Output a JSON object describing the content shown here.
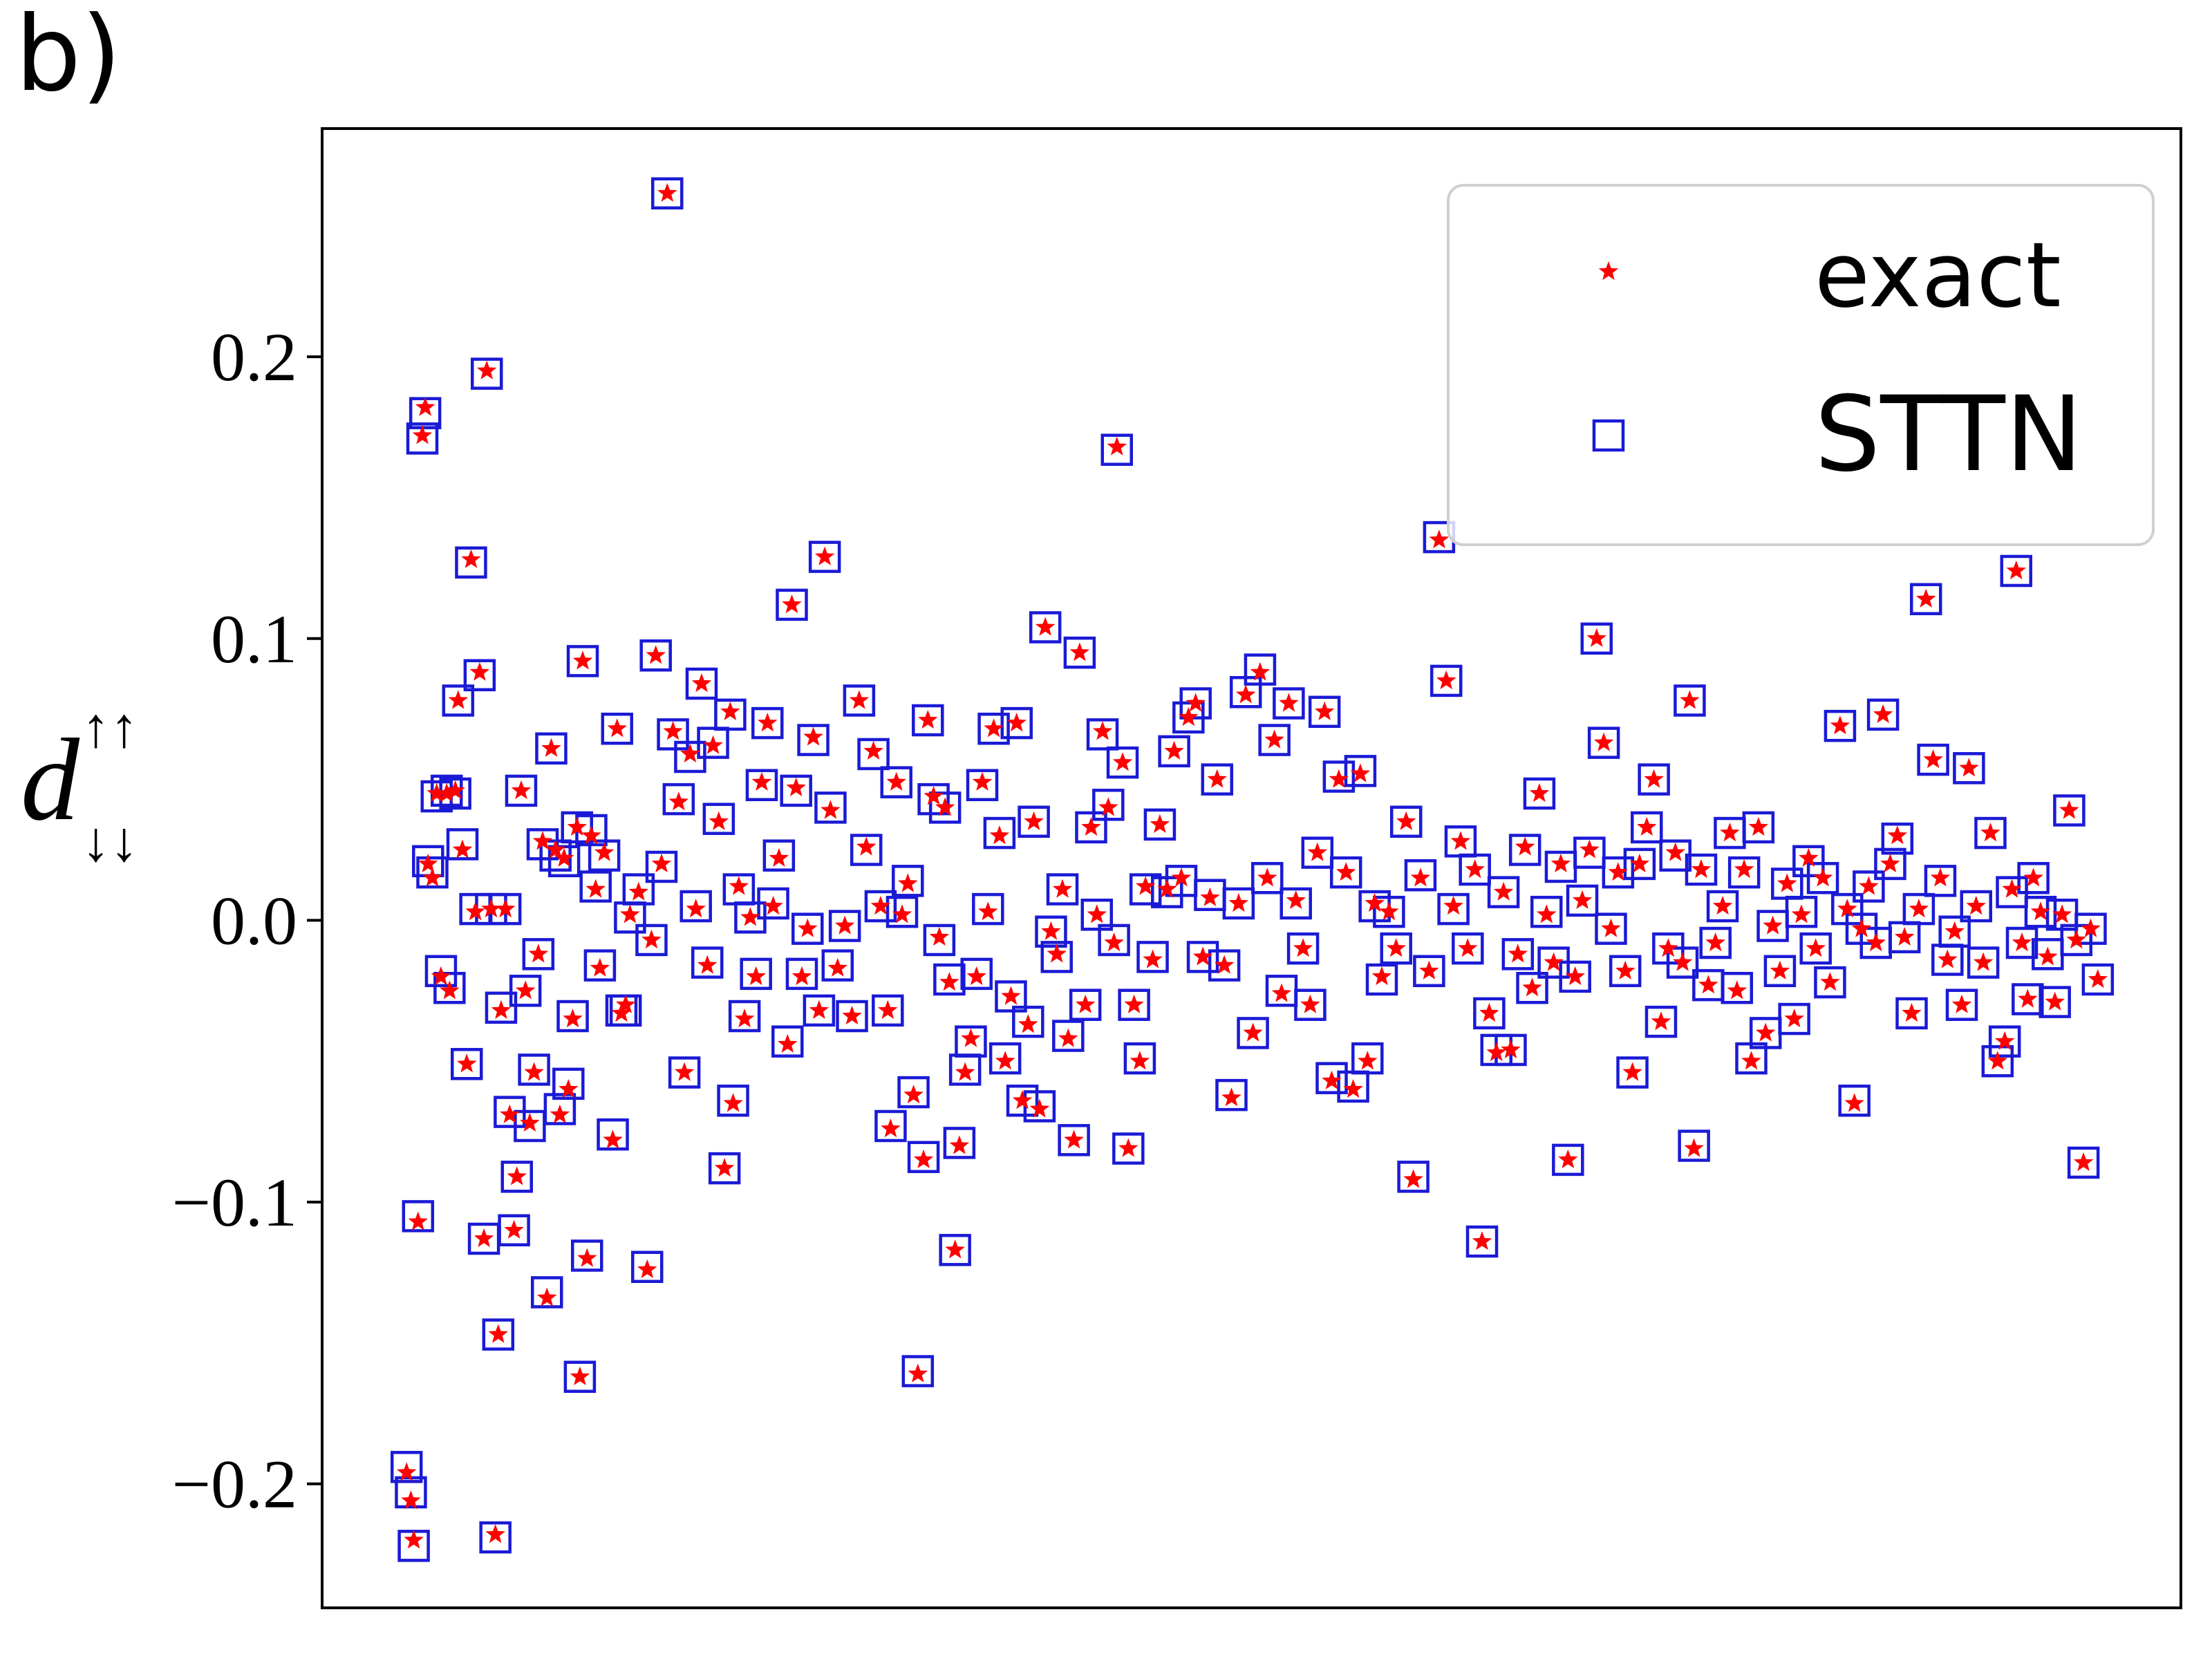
{
  "panel_label": "b)",
  "chart_data": {
    "type": "scatter",
    "ylabel": {
      "base": "d",
      "sup": "↑↑",
      "sub": "↓↓"
    },
    "xlim": [
      0,
      1298
    ],
    "ylim": [
      -0.244,
      0.281
    ],
    "yticks": [
      {
        "value": -0.2,
        "label": "−0.2"
      },
      {
        "value": -0.1,
        "label": "−0.1"
      },
      {
        "value": 0,
        "label": "0.0"
      },
      0.1,
      0.2
    ],
    "legend": "upper right",
    "x": [
      59,
      62,
      64,
      67,
      70,
      72,
      74,
      77,
      80,
      83,
      87,
      89,
      93,
      95,
      98,
      101,
      104,
      107,
      110,
      113,
      115,
      118,
      121,
      123,
      125,
      128,
      131,
      134,
      136,
      139,
      142,
      145,
      148,
      151,
      154,
      157,
      160,
      163,
      166,
      169,
      172,
      175,
      178,
      180,
      182,
      185,
      188,
      191,
      194,
      197,
      203,
      206,
      209,
      212,
      215,
      221,
      227,
      230,
      233,
      237,
      241,
      245,
      249,
      253,
      257,
      261,
      265,
      269,
      273,
      277,
      281,
      285,
      287,
      291,
      295,
      299,
      303,
      307,
      311,
      315,
      319,
      325,
      328,
      331,
      335,
      339,
      343,
      347,
      351,
      355,
      360,
      365,
      370,
      375,
      380,
      385,
      390,
      395,
      397,
      401,
      405,
      409,
      413,
      416,
      420,
      423,
      427,
      431,
      435,
      438,
      442,
      445,
      449,
      453,
      457,
      461,
      465,
      469,
      473,
      477,
      481,
      485,
      489,
      493,
      497,
      501,
      505,
      509,
      513,
      517,
      521,
      525,
      529,
      533,
      537,
      541,
      545,
      549,
      553,
      555,
      559,
      563,
      567,
      571,
      575,
      580,
      585,
      590,
      595,
      600,
      605,
      610,
      615,
      620,
      625,
      630,
      635,
      640,
      645,
      650,
      655,
      660,
      665,
      670,
      675,
      680,
      685,
      690,
      695,
      700,
      705,
      710,
      715,
      720,
      725,
      730,
      735,
      740,
      745,
      750,
      757,
      762,
      767,
      773,
      780,
      785,
      790,
      795,
      800,
      805,
      810,
      815,
      820,
      825,
      830,
      835,
      840,
      845,
      850,
      855,
      860,
      865,
      870,
      875,
      880,
      885,
      890,
      895,
      900,
      905,
      910,
      915,
      920,
      925,
      930,
      935,
      940,
      945,
      950,
      955,
      958,
      963,
      968,
      973,
      978,
      983,
      988,
      993,
      998,
      1003,
      1008,
      1013,
      1018,
      1023,
      1028,
      1033,
      1038,
      1043,
      1048,
      1053,
      1060,
      1065,
      1070,
      1075,
      1080,
      1085,
      1090,
      1095,
      1100,
      1105,
      1110,
      1115,
      1120,
      1125,
      1130,
      1135,
      1140,
      1145,
      1150,
      1155,
      1160,
      1165,
      1170,
      1175,
      1180,
      1183,
      1187,
      1191,
      1195,
      1200,
      1205,
      1210,
      1215,
      1220,
      1225,
      1230,
      1235,
      1240
    ],
    "series": [
      {
        "name": "exact",
        "color": "#ff0000",
        "marker": "*",
        "values": [
          -0.196,
          -0.206,
          -0.22,
          -0.107,
          0.172,
          0.182,
          0.02,
          0.015,
          0.045,
          -0.02,
          0.045,
          -0.025,
          0.046,
          0.078,
          0.025,
          -0.051,
          0.128,
          0.003,
          0.088,
          -0.113,
          0.195,
          0.004,
          -0.218,
          -0.147,
          -0.032,
          0.004,
          -0.069,
          -0.11,
          -0.091,
          0.046,
          -0.025,
          -0.072,
          -0.054,
          -0.012,
          0.028,
          -0.134,
          0.061,
          0.025,
          -0.069,
          0.022,
          -0.06,
          -0.035,
          0.033,
          -0.162,
          0.092,
          -0.12,
          0.03,
          0.011,
          -0.017,
          0.024,
          -0.078,
          0.068,
          -0.033,
          -0.03,
          0.002,
          0.01,
          -0.124,
          -0.007,
          0.094,
          0.02,
          0.258,
          0.067,
          0.042,
          -0.054,
          0.059,
          0.004,
          0.084,
          -0.016,
          0.062,
          0.035,
          -0.088,
          0.074,
          -0.065,
          0.012,
          -0.035,
          0.001,
          -0.02,
          0.049,
          0.07,
          0.005,
          0.022,
          -0.044,
          0.112,
          0.047,
          -0.02,
          -0.003,
          0.065,
          -0.032,
          0.129,
          0.039,
          -0.017,
          -0.002,
          -0.034,
          0.078,
          0.026,
          0.06,
          0.005,
          -0.032,
          -0.074,
          0.049,
          0.002,
          0.013,
          -0.062,
          -0.161,
          -0.085,
          0.071,
          0.044,
          -0.006,
          0.04,
          -0.022,
          -0.117,
          -0.08,
          -0.054,
          -0.042,
          -0.02,
          0.049,
          0.003,
          0.068,
          0.03,
          -0.05,
          -0.027,
          0.07,
          -0.064,
          -0.037,
          0.035,
          -0.067,
          0.104,
          -0.004,
          -0.012,
          0.011,
          -0.042,
          -0.078,
          0.095,
          -0.03,
          0.033,
          0.002,
          0.067,
          0.04,
          -0.008,
          0.168,
          0.056,
          -0.081,
          -0.03,
          -0.05,
          0.012,
          -0.014,
          0.034,
          0.011,
          0.06,
          0.015,
          0.072,
          0.077,
          -0.013,
          0.008,
          0.05,
          -0.016,
          -0.063,
          0.006,
          0.08,
          -0.04,
          0.088,
          0.015,
          0.064,
          -0.026,
          0.077,
          0.007,
          -0.01,
          -0.03,
          0.024,
          0.074,
          -0.057,
          0.05,
          0.017,
          -0.06,
          0.052,
          -0.05,
          0.006,
          -0.02,
          0.003,
          -0.01,
          0.035,
          -0.092,
          0.015,
          -0.018,
          0.135,
          0.085,
          0.005,
          0.028,
          -0.01,
          0.018,
          -0.114,
          -0.033,
          -0.047,
          0.01,
          -0.046,
          -0.012,
          0.026,
          -0.024,
          0.045,
          0.002,
          -0.015,
          0.02,
          -0.085,
          -0.02,
          0.007,
          0.025,
          0.1,
          0.063,
          -0.003,
          0.017,
          -0.018,
          -0.054,
          0.02,
          0.033,
          0.05,
          -0.036,
          -0.01,
          0.024,
          -0.015,
          0.078,
          -0.081,
          0.018,
          -0.023,
          -0.008,
          0.005,
          0.031,
          -0.025,
          0.018,
          -0.05,
          0.033,
          -0.04,
          -0.002,
          -0.018,
          0.013,
          -0.035,
          0.002,
          0.022,
          -0.01,
          0.015,
          -0.022,
          0.069,
          0.004,
          -0.065,
          -0.003,
          0.012,
          -0.008,
          0.073,
          0.02,
          0.03,
          -0.006,
          -0.033,
          0.004,
          0.114,
          0.057,
          0.015,
          -0.014,
          -0.004,
          -0.03,
          0.054,
          0.005,
          -0.015,
          0.031,
          -0.05,
          -0.043,
          0.011,
          0.124,
          -0.008,
          -0.028,
          0.015,
          0.003,
          -0.013,
          -0.029,
          0.002,
          0.039,
          -0.007,
          -0.086,
          -0.003,
          -0.021
        ]
      },
      {
        "name": "STTN",
        "color": "#1a1ad6",
        "marker": "s",
        "values": [
          -0.194,
          -0.203,
          -0.222,
          -0.105,
          0.171,
          0.18,
          0.021,
          0.017,
          0.044,
          -0.018,
          0.046,
          -0.024,
          0.045,
          0.078,
          0.027,
          -0.051,
          0.127,
          0.004,
          0.087,
          -0.113,
          0.194,
          0.004,
          -0.219,
          -0.147,
          -0.031,
          0.004,
          -0.068,
          -0.11,
          -0.091,
          0.046,
          -0.025,
          -0.073,
          -0.053,
          -0.012,
          0.027,
          -0.132,
          0.061,
          0.023,
          -0.067,
          0.021,
          -0.058,
          -0.034,
          0.033,
          -0.162,
          0.092,
          -0.119,
          0.032,
          0.012,
          -0.016,
          0.023,
          -0.076,
          0.068,
          -0.032,
          -0.032,
          0.001,
          0.011,
          -0.123,
          -0.007,
          0.094,
          0.019,
          0.258,
          0.066,
          0.043,
          -0.054,
          0.058,
          0.005,
          0.084,
          -0.015,
          0.063,
          0.036,
          -0.088,
          0.073,
          -0.064,
          0.011,
          -0.034,
          0.001,
          -0.019,
          0.048,
          0.07,
          0.006,
          0.023,
          -0.043,
          0.112,
          0.046,
          -0.019,
          -0.003,
          0.064,
          -0.032,
          0.129,
          0.04,
          -0.016,
          -0.002,
          -0.034,
          0.078,
          0.025,
          0.059,
          0.005,
          -0.032,
          -0.073,
          0.049,
          0.003,
          0.014,
          -0.061,
          -0.16,
          -0.084,
          0.071,
          0.043,
          -0.007,
          0.04,
          -0.021,
          -0.117,
          -0.079,
          -0.053,
          -0.043,
          -0.019,
          0.048,
          0.004,
          0.068,
          0.031,
          -0.049,
          -0.027,
          0.07,
          -0.064,
          -0.036,
          0.035,
          -0.066,
          0.104,
          -0.004,
          -0.013,
          0.011,
          -0.041,
          -0.078,
          0.095,
          -0.03,
          0.033,
          0.002,
          0.066,
          0.041,
          -0.007,
          0.167,
          0.056,
          -0.081,
          -0.03,
          -0.049,
          0.011,
          -0.013,
          0.034,
          0.01,
          0.06,
          0.014,
          0.072,
          0.077,
          -0.013,
          0.009,
          0.05,
          -0.016,
          -0.062,
          0.006,
          0.081,
          -0.04,
          0.089,
          0.015,
          0.064,
          -0.025,
          0.077,
          0.006,
          -0.01,
          -0.03,
          0.024,
          0.074,
          -0.056,
          0.051,
          0.017,
          -0.059,
          0.053,
          -0.049,
          0.005,
          -0.021,
          0.003,
          -0.01,
          0.035,
          -0.091,
          0.016,
          -0.018,
          0.136,
          0.085,
          0.004,
          0.028,
          -0.01,
          0.018,
          -0.114,
          -0.033,
          -0.046,
          0.01,
          -0.046,
          -0.012,
          0.025,
          -0.024,
          0.045,
          0.003,
          -0.015,
          0.019,
          -0.085,
          -0.02,
          0.007,
          0.024,
          0.1,
          0.063,
          -0.003,
          0.017,
          -0.018,
          -0.054,
          0.02,
          0.033,
          0.05,
          -0.036,
          -0.01,
          0.023,
          -0.015,
          0.078,
          -0.08,
          0.018,
          -0.023,
          -0.008,
          0.005,
          0.031,
          -0.024,
          0.017,
          -0.049,
          0.033,
          -0.04,
          -0.002,
          -0.018,
          0.013,
          -0.035,
          0.003,
          0.021,
          -0.01,
          0.015,
          -0.022,
          0.069,
          0.004,
          -0.064,
          -0.003,
          0.012,
          -0.008,
          0.073,
          0.02,
          0.029,
          -0.006,
          -0.033,
          0.004,
          0.114,
          0.057,
          0.014,
          -0.014,
          -0.004,
          -0.03,
          0.054,
          0.005,
          -0.015,
          0.031,
          -0.05,
          -0.043,
          0.01,
          0.124,
          -0.008,
          -0.028,
          0.015,
          0.003,
          -0.012,
          -0.029,
          0.002,
          0.039,
          -0.007,
          -0.086,
          -0.003,
          -0.021
        ]
      }
    ]
  }
}
